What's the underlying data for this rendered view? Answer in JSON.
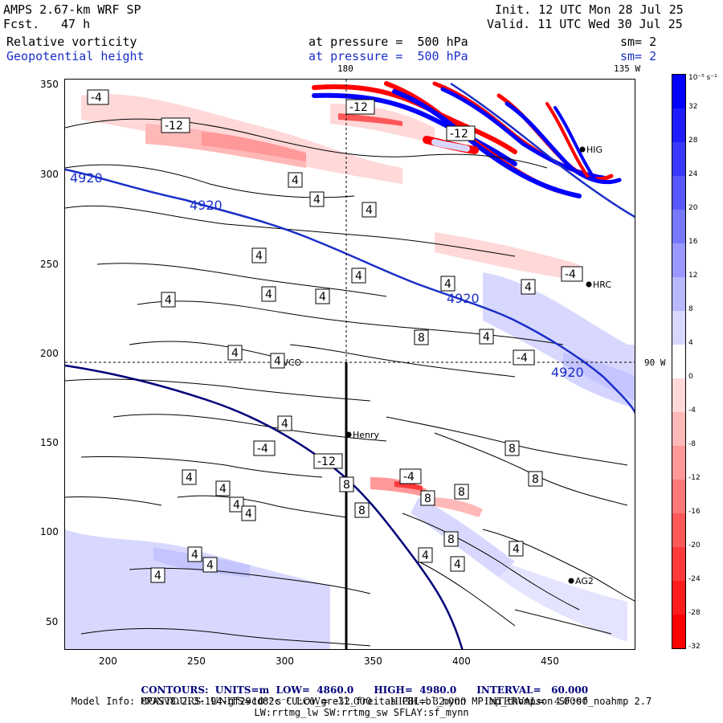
{
  "header": {
    "model": "AMPS 2.67-km WRF SP",
    "fcst_label": "Fcst.",
    "fcst_value": "47 h",
    "init": "Init. 12 UTC Mon 28 Jul 25",
    "valid": "Valid. 11 UTC Wed 30 Jul 25",
    "field1": "Relative vorticity",
    "field2": "Geopotential height",
    "level1": "at pressure =  500 hPa",
    "level2": "at pressure =  500 hPa",
    "sm1": "sm= 2",
    "sm2": "sm= 2"
  },
  "map": {
    "lon_top_1": "180",
    "lon_top_2": "135 W",
    "lon_right": "90 W",
    "x_ticks": [
      "200",
      "250",
      "300",
      "350",
      "400",
      "450"
    ],
    "y_ticks": [
      "350",
      "300",
      "250",
      "200",
      "150",
      "100",
      "50"
    ],
    "stations": [
      {
        "name": "HRC",
        "x": 732,
        "y": 353
      },
      {
        "name": "WCO",
        "x": 342,
        "y": 450
      },
      {
        "name": "Henry",
        "x": 433,
        "y": 540
      },
      {
        "name": "AG2",
        "x": 710,
        "y": 722
      },
      {
        "name": "HIG",
        "x": 724,
        "y": 185
      }
    ],
    "height_labels": [
      "4920",
      "4920",
      "4920",
      "4920"
    ],
    "vort_labels": [
      "-4",
      "-12",
      "-12",
      "-12",
      "-4",
      "4",
      "4",
      "4",
      "4",
      "4",
      "4",
      "4",
      "4",
      "4",
      "4",
      "4",
      "4",
      "8",
      "4",
      "-4",
      "-4",
      "-12",
      "-4",
      "8",
      "8",
      "8",
      "4",
      "4",
      "4",
      "4",
      "4",
      "8",
      "8",
      "8",
      "8",
      "4",
      "4",
      "4",
      "4",
      "4",
      "4"
    ]
  },
  "colorbar": {
    "unit": "10⁻⁵ s⁻¹",
    "labels": [
      "32",
      "28",
      "24",
      "20",
      "16",
      "12",
      "8",
      "4",
      "0",
      "-4",
      "-8",
      "-12",
      "-16",
      "-20",
      "-24",
      "-28",
      "-32"
    ],
    "colors": [
      "#0000ff",
      "#1c1cff",
      "#3a3aff",
      "#5858ff",
      "#7878ff",
      "#9898ff",
      "#b8b8ff",
      "#d8d8ff",
      "#ffffff",
      "#ffd8d8",
      "#ffb8b8",
      "#ff9898",
      "#ff7878",
      "#ff5858",
      "#ff3a3a",
      "#ff1c1c",
      "#ff0000"
    ]
  },
  "footer": {
    "line1_a": "CONTOURS:  UNITS=m  LOW=  4860.0",
    "line1_b": "HIGH=  4980.0",
    "line1_c": "INTERVAL=   60.000",
    "line2_a": "CONTOURS:  UNITS=10⁻⁵ s⁻¹  LOW=  -32.000",
    "line2_b": "HIGH=  32.000",
    "line2_c": "INTERVAL=   4.0000",
    "line3": "Model Info: MPASv8.2.3-194-gf29cd82c CU:cu_grell_freitas PBL:bl_mynn MP:mp_thompson SF:sf_noahmp 2.7",
    "line4": "LW:rrtmg_lw SW:rrtmg_sw SFLAY:sf_mynn"
  }
}
